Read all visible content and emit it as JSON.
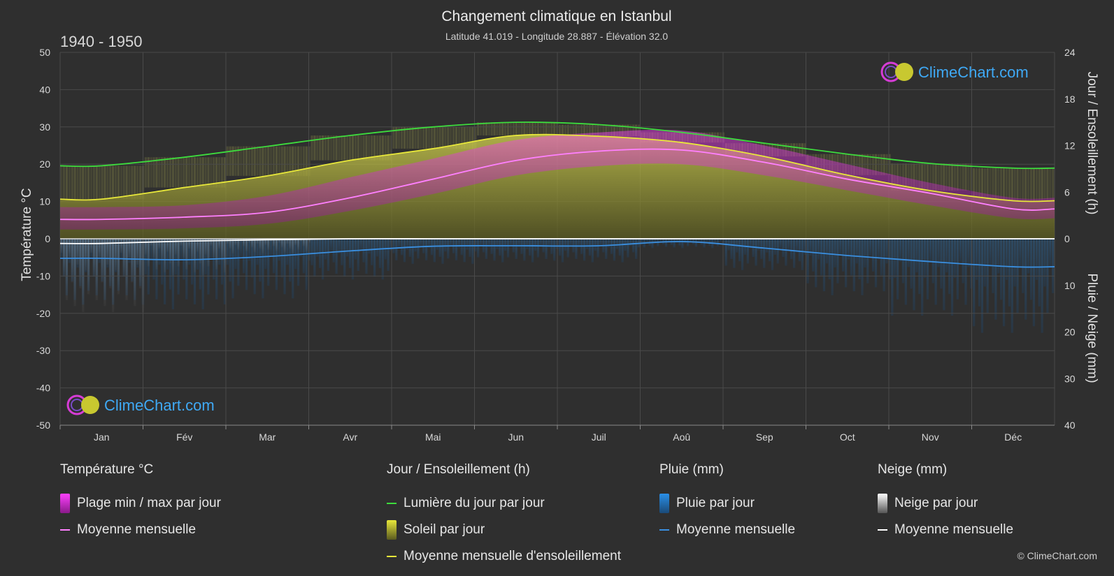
{
  "title": "Changement climatique en Istanbul",
  "subtitle": "Latitude 41.019 - Longitude 28.887 - Élévation 32.0",
  "period": "1940 - 1950",
  "watermark": "ClimeChart.com",
  "copyright": "© ClimeChart.com",
  "colors": {
    "background": "#2f2f2f",
    "daylight": "#3ddc3d",
    "sunshine_fill": "#b8b83a",
    "sunshine_line": "#e8e83a",
    "temp_range": "#d63cd6",
    "temp_mean": "#ff80ff",
    "rain": "#2a7fd4",
    "rain_line": "#3a8fe0",
    "snow": "#bdbdbd",
    "snow_line": "#ffffff",
    "brand": "#3fa9f5"
  },
  "chart_data": {
    "type": "area",
    "categories": [
      "Jan",
      "Fév",
      "Mar",
      "Avr",
      "Mai",
      "Jun",
      "Juil",
      "Aoû",
      "Sep",
      "Oct",
      "Nov",
      "Déc"
    ],
    "axes": {
      "left": {
        "label": "Température °C",
        "min": -50,
        "max": 50,
        "ticks": [
          50,
          40,
          30,
          20,
          10,
          0,
          -10,
          -20,
          -30,
          -40,
          -50
        ]
      },
      "right_top": {
        "label": "Jour / Ensoleillement (h)",
        "min": 0,
        "max": 24,
        "ticks": [
          24,
          18,
          12,
          6,
          0
        ]
      },
      "right_bottom": {
        "label": "Pluie / Neige (mm)",
        "min": 0,
        "max": 40,
        "ticks": [
          0,
          10,
          20,
          30,
          40
        ]
      }
    },
    "grid": true,
    "series": [
      {
        "name": "Lumière du jour par jour",
        "axis": "hours",
        "values": [
          9.4,
          10.5,
          11.9,
          13.3,
          14.4,
          15.0,
          14.7,
          13.7,
          12.3,
          10.9,
          9.7,
          9.1
        ]
      },
      {
        "name": "Moyenne mensuelle d'ensoleillement",
        "axis": "hours",
        "values": [
          5.1,
          6.6,
          8.1,
          10.1,
          11.6,
          13.3,
          13.2,
          12.4,
          10.6,
          8.2,
          6.2,
          4.9
        ]
      },
      {
        "name": "Moyenne mensuelle",
        "group": "Température °C",
        "axis": "temperature",
        "values": [
          5.2,
          5.8,
          7.1,
          11.0,
          16.0,
          21.0,
          23.5,
          23.8,
          20.5,
          16.0,
          12.2,
          8.0
        ]
      },
      {
        "name": "Plage min / max par jour",
        "axis": "temperature",
        "min": [
          2.5,
          2.8,
          4.0,
          7.5,
          12.0,
          17.0,
          19.5,
          20.0,
          17.0,
          13.0,
          9.0,
          5.5
        ],
        "max": [
          8.5,
          9.0,
          11.5,
          16.5,
          21.5,
          26.5,
          28.5,
          29.0,
          25.0,
          20.0,
          15.0,
          11.0
        ]
      },
      {
        "name": "Moyenne mensuelle",
        "group": "Pluie (mm)",
        "axis": "precip",
        "values": [
          4.2,
          4.5,
          3.8,
          2.6,
          1.6,
          1.5,
          1.5,
          0.6,
          2.0,
          3.6,
          4.9,
          6.0
        ]
      },
      {
        "name": "Moyenne mensuelle",
        "group": "Neige (mm)",
        "axis": "precip",
        "values": [
          1.0,
          0.5,
          0.2,
          0.0,
          0.0,
          0.0,
          0.0,
          0.0,
          0.0,
          0.0,
          0.0,
          0.0
        ]
      }
    ]
  },
  "legend": {
    "temperature": {
      "title": "Température °C",
      "items": [
        "Plage min / max par jour",
        "Moyenne mensuelle"
      ]
    },
    "sun": {
      "title": "Jour / Ensoleillement (h)",
      "items": [
        "Lumière du jour par jour",
        "Soleil par jour",
        "Moyenne mensuelle d'ensoleillement"
      ]
    },
    "rain": {
      "title": "Pluie (mm)",
      "items": [
        "Pluie par jour",
        "Moyenne mensuelle"
      ]
    },
    "snow": {
      "title": "Neige (mm)",
      "items": [
        "Neige par jour",
        "Moyenne mensuelle"
      ]
    }
  }
}
